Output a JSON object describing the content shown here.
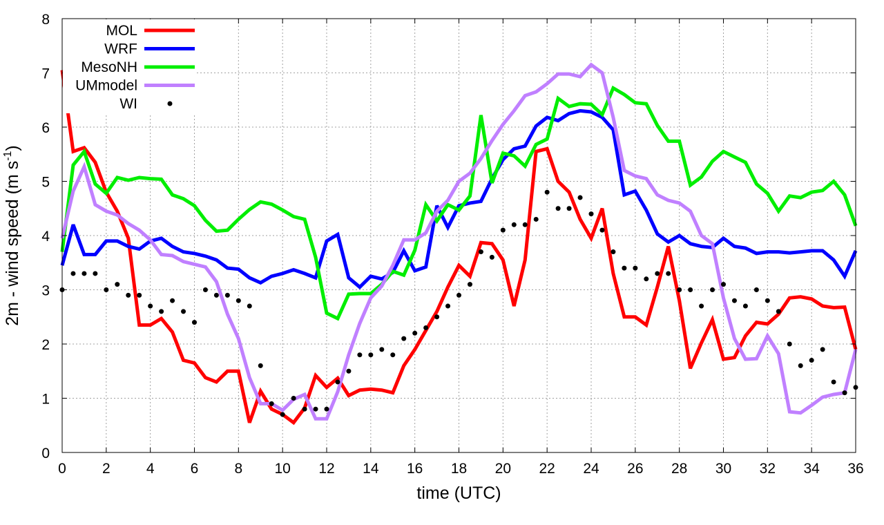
{
  "chart_data": {
    "type": "line",
    "xlabel": "time (UTC)",
    "ylabel": "2m - wind speed  (m s",
    "ylabel_sup": "-1",
    "ylabel_end": ")",
    "xlim": [
      0,
      36
    ],
    "ylim": [
      0,
      8
    ],
    "xticks": [
      0,
      2,
      4,
      6,
      8,
      10,
      12,
      14,
      16,
      18,
      20,
      22,
      24,
      26,
      28,
      30,
      32,
      34,
      36
    ],
    "yticks": [
      0,
      1,
      2,
      3,
      4,
      5,
      6,
      7,
      8
    ],
    "grid": true,
    "legend_position": "top-left",
    "x": [
      0,
      0.5,
      1,
      1.5,
      2,
      2.5,
      3,
      3.5,
      4,
      4.5,
      5,
      5.5,
      6,
      6.5,
      7,
      7.5,
      8,
      8.5,
      9,
      9.5,
      10,
      10.5,
      11,
      11.5,
      12,
      12.5,
      13,
      13.5,
      14,
      14.5,
      15,
      15.5,
      16,
      16.5,
      17,
      17.5,
      18,
      18.5,
      19,
      19.5,
      20,
      20.5,
      21,
      21.5,
      22,
      22.5,
      23,
      23.5,
      24,
      24.5,
      25,
      25.5,
      26,
      26.5,
      27,
      27.5,
      28,
      28.5,
      29,
      29.5,
      30,
      30.5,
      31,
      31.5,
      32,
      32.5,
      33,
      33.5,
      34,
      34.5,
      35,
      35.5,
      36
    ],
    "series": [
      {
        "name": "MOL",
        "color": "#ff0000",
        "style": "line",
        "values": [
          7.05,
          5.55,
          5.62,
          5.35,
          4.8,
          4.45,
          3.95,
          2.35,
          2.35,
          2.47,
          2.22,
          1.7,
          1.65,
          1.38,
          1.3,
          1.5,
          1.5,
          0.55,
          1.13,
          0.8,
          0.7,
          0.55,
          0.82,
          1.42,
          1.2,
          1.37,
          1.05,
          1.15,
          1.17,
          1.15,
          1.1,
          1.6,
          1.9,
          2.25,
          2.6,
          3.05,
          3.45,
          3.25,
          3.87,
          3.85,
          3.55,
          2.7,
          3.55,
          5.55,
          5.6,
          5.0,
          4.8,
          4.3,
          3.95,
          4.5,
          3.3,
          2.5,
          2.5,
          2.35,
          3.05,
          3.8,
          2.8,
          1.55,
          2.02,
          2.45,
          1.72,
          1.75,
          2.15,
          2.4,
          2.37,
          2.55,
          2.85,
          2.87,
          2.83,
          2.7,
          2.67,
          2.68,
          1.9
        ]
      },
      {
        "name": "WRF",
        "color": "#0000ff",
        "style": "line",
        "values": [
          3.45,
          4.2,
          3.65,
          3.65,
          3.9,
          3.9,
          3.8,
          3.75,
          3.9,
          3.95,
          3.8,
          3.7,
          3.67,
          3.62,
          3.55,
          3.4,
          3.38,
          3.22,
          3.13,
          3.25,
          3.3,
          3.37,
          3.3,
          3.22,
          3.9,
          4.02,
          3.22,
          3.05,
          3.25,
          3.2,
          3.32,
          3.72,
          3.35,
          3.42,
          4.55,
          4.15,
          4.55,
          4.6,
          4.63,
          5.05,
          5.4,
          5.6,
          5.65,
          6.02,
          6.18,
          6.12,
          6.25,
          6.3,
          6.28,
          6.18,
          5.95,
          4.75,
          4.82,
          4.47,
          4.03,
          3.88,
          4.0,
          3.85,
          3.8,
          3.78,
          3.95,
          3.8,
          3.77,
          3.67,
          3.7,
          3.7,
          3.68,
          3.7,
          3.72,
          3.72,
          3.55,
          3.25,
          3.72
        ]
      },
      {
        "name": "MesoNH",
        "color": "#00ee00",
        "style": "line",
        "values": [
          3.7,
          5.3,
          5.55,
          4.95,
          4.78,
          5.07,
          5.02,
          5.07,
          5.05,
          5.04,
          4.75,
          4.68,
          4.55,
          4.28,
          4.08,
          4.1,
          4.3,
          4.48,
          4.62,
          4.58,
          4.47,
          4.35,
          4.3,
          3.6,
          2.57,
          2.47,
          2.92,
          2.93,
          2.93,
          3.1,
          3.34,
          3.27,
          3.73,
          4.57,
          4.27,
          4.57,
          4.47,
          4.73,
          6.22,
          4.97,
          5.52,
          5.47,
          5.28,
          5.68,
          5.78,
          6.53,
          6.38,
          6.43,
          6.42,
          6.23,
          6.72,
          6.6,
          6.45,
          6.43,
          6.03,
          5.74,
          5.74,
          4.93,
          5.08,
          5.37,
          5.55,
          5.45,
          5.35,
          4.95,
          4.78,
          4.45,
          4.73,
          4.7,
          4.8,
          4.83,
          5.0,
          4.75,
          4.18
        ]
      },
      {
        "name": "UMmodel",
        "color": "#c080ff",
        "style": "line",
        "values": [
          3.95,
          4.82,
          5.27,
          4.57,
          4.45,
          4.38,
          4.22,
          4.1,
          3.92,
          3.65,
          3.63,
          3.52,
          3.47,
          3.42,
          3.15,
          2.55,
          2.1,
          1.38,
          0.9,
          0.9,
          0.78,
          0.98,
          1.07,
          0.62,
          0.62,
          1.12,
          1.8,
          2.38,
          2.85,
          3.07,
          3.45,
          3.92,
          3.92,
          4.05,
          4.45,
          4.65,
          5.0,
          5.15,
          5.42,
          5.75,
          6.05,
          6.3,
          6.58,
          6.65,
          6.8,
          6.98,
          6.98,
          6.93,
          7.15,
          7.0,
          6.18,
          5.2,
          5.1,
          5.05,
          4.75,
          4.65,
          4.6,
          4.45,
          4.0,
          3.85,
          2.85,
          2.1,
          1.72,
          1.73,
          2.15,
          1.82,
          0.75,
          0.73,
          0.87,
          1.02,
          1.07,
          1.1,
          1.9
        ]
      },
      {
        "name": "WI",
        "color": "#000000",
        "style": "points",
        "values": [
          3.0,
          3.3,
          3.3,
          3.3,
          3.0,
          3.1,
          2.9,
          2.9,
          2.7,
          2.6,
          2.8,
          2.6,
          2.4,
          3.0,
          2.9,
          2.9,
          2.8,
          2.7,
          1.6,
          0.9,
          0.7,
          1.0,
          0.8,
          0.8,
          0.8,
          1.3,
          1.5,
          1.8,
          1.8,
          1.9,
          1.8,
          2.1,
          2.2,
          2.3,
          2.5,
          2.7,
          2.9,
          3.1,
          3.7,
          3.6,
          4.1,
          4.2,
          4.2,
          4.3,
          4.8,
          4.5,
          4.5,
          4.7,
          4.4,
          4.1,
          3.7,
          3.4,
          3.4,
          3.2,
          3.3,
          3.3,
          3.0,
          3.0,
          2.7,
          3.0,
          3.1,
          2.8,
          2.7,
          3.0,
          2.8,
          2.6,
          2.0,
          1.6,
          1.7,
          1.9,
          1.3,
          1.1,
          1.2
        ]
      }
    ]
  }
}
